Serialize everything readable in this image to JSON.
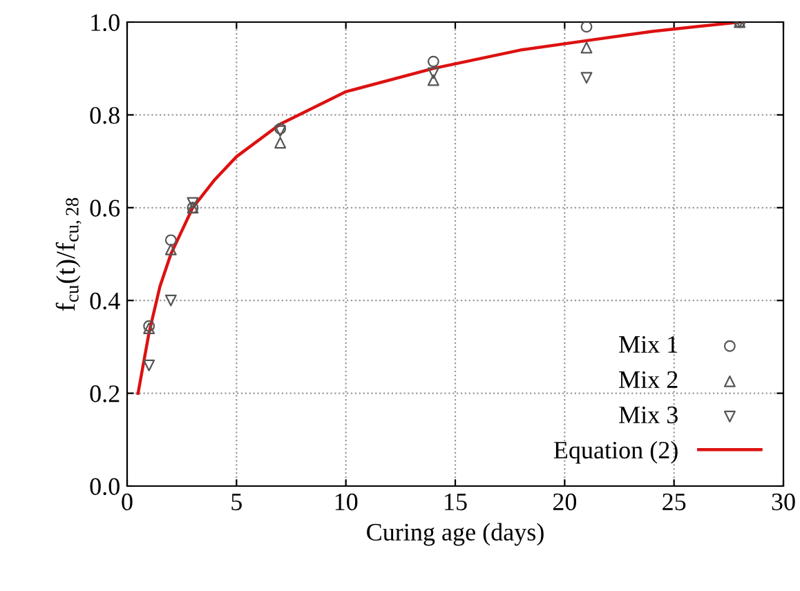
{
  "chart_data": {
    "type": "scatter",
    "xlabel": "Curing age (days)",
    "ylabel": "f$_{cu}$(t)/f$_{cu,28}$",
    "xlim": [
      0,
      30
    ],
    "xticks": [
      0,
      5,
      10,
      15,
      20,
      25,
      30
    ],
    "ylim": [
      0,
      1
    ],
    "yticks": [
      {
        "value": 0,
        "label": "0.0"
      },
      {
        "value": 0.2,
        "label": "0.2"
      },
      {
        "value": 0.4,
        "label": "0.4"
      },
      {
        "value": 0.6,
        "label": "0.6"
      },
      {
        "value": 0.8,
        "label": "0.8"
      },
      {
        "value": 1,
        "label": "1.0"
      }
    ],
    "grid": true,
    "legend": "bottom right",
    "series": [
      {
        "name": "Mix 1",
        "marker": "circle",
        "color": "#555555",
        "x": [
          1,
          2,
          3,
          7,
          14,
          21,
          28
        ],
        "values": [
          0.345,
          0.53,
          0.6,
          0.77,
          0.915,
          0.99,
          1.0
        ]
      },
      {
        "name": "Mix 2",
        "marker": "triangle",
        "color": "#555555",
        "x": [
          1,
          2,
          3,
          7,
          14,
          21,
          28
        ],
        "values": [
          0.34,
          0.51,
          0.6,
          0.74,
          0.875,
          0.945,
          1.0
        ]
      },
      {
        "name": "Mix 3",
        "marker": "triangle_down",
        "color": "#555555",
        "x": [
          1,
          2,
          3,
          7,
          14,
          21,
          28
        ],
        "values": [
          0.26,
          0.4,
          0.61,
          0.765,
          0.89,
          0.88,
          1.0
        ]
      },
      {
        "name": "Equation (2)",
        "type": "line",
        "marker": "none",
        "line_style": "solid",
        "color": "#dd1111",
        "x": [
          0.5,
          1,
          1.5,
          2,
          3,
          4,
          5,
          7,
          10,
          14,
          18,
          21,
          24,
          28
        ],
        "values": [
          0.2,
          0.33,
          0.43,
          0.5,
          0.6,
          0.66,
          0.71,
          0.78,
          0.85,
          0.9,
          0.94,
          0.96,
          0.98,
          1.0
        ]
      }
    ]
  }
}
